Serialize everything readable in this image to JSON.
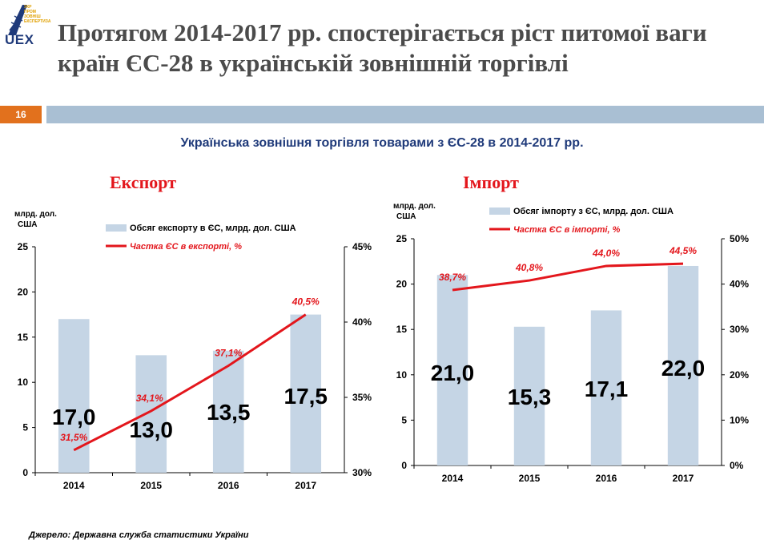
{
  "logo": {
    "text": "UEX",
    "subtitle": "УКР ПРОМ ЗОВНІШ ЕКСПЕРТИЗА"
  },
  "slide": {
    "title": "Протягом 2014-2017 рр. спостерігається ріст питомої ваги країн ЄС-28 в українській зовнішній торгівлі",
    "page_number": "16",
    "subtitle": "Українська зовнішня торгівля  товарами  з ЄС-28 в 2014-2017 рр.",
    "source": "Джерело: Державна служба статистики України"
  },
  "colors": {
    "bar": "#c5d5e5",
    "line": "#e3161c",
    "accent": "#e2711d",
    "strip": "#a9bfd3"
  },
  "chart_data": [
    {
      "type": "bar",
      "title": "Експорт",
      "unit_label": "млрд. дол. США",
      "categories": [
        "2014",
        "2015",
        "2016",
        "2017"
      ],
      "series": [
        {
          "name": "Обсяг експорту в ЄС, млрд. дол. США",
          "values": [
            17.0,
            13.0,
            13.5,
            17.5
          ],
          "labels": [
            "17,0",
            "13,0",
            "13,5",
            "17,5"
          ]
        },
        {
          "name": "Частка ЄС в експорті, %",
          "type": "line",
          "axis": "right",
          "values": [
            31.5,
            34.1,
            37.1,
            40.5
          ],
          "labels": [
            "31,5%",
            "34,1%",
            "37,1%",
            "40,5%"
          ]
        }
      ],
      "ylim": [
        0,
        25
      ],
      "y_ticks": [
        "0",
        "5",
        "10",
        "15",
        "20",
        "25"
      ],
      "y2lim": [
        30,
        45
      ],
      "y2_ticks": [
        "30%",
        "35%",
        "40%",
        "45%"
      ]
    },
    {
      "type": "bar",
      "title": "Імпорт",
      "unit_label": "млрд. дол. США",
      "categories": [
        "2014",
        "2015",
        "2016",
        "2017"
      ],
      "series": [
        {
          "name": "Обсяг імпорту з ЄС, млрд. дол. США",
          "values": [
            21.0,
            15.3,
            17.1,
            22.0
          ],
          "labels": [
            "21,0",
            "15,3",
            "17,1",
            "22,0"
          ]
        },
        {
          "name": "Частка ЄС в імпорті, %",
          "type": "line",
          "axis": "right",
          "values": [
            38.7,
            40.8,
            44.0,
            44.5
          ],
          "labels": [
            "38,7%",
            "40,8%",
            "44,0%",
            "44,5%"
          ]
        }
      ],
      "ylim": [
        0,
        25
      ],
      "y_ticks": [
        "0",
        "5",
        "10",
        "15",
        "20",
        "25"
      ],
      "y2lim": [
        0,
        50
      ],
      "y2_ticks": [
        "0%",
        "10%",
        "20%",
        "30%",
        "40%",
        "50%"
      ]
    }
  ]
}
